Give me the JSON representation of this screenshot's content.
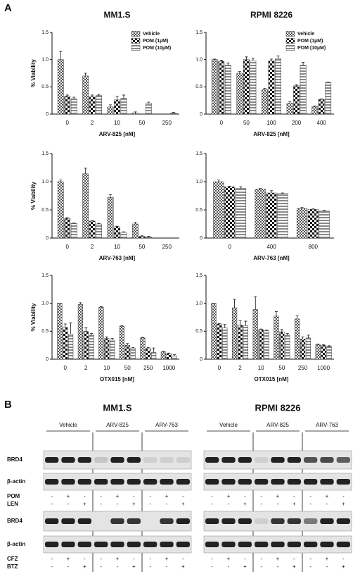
{
  "panel_a_label": "A",
  "panel_b_label": "B",
  "chart_data": [
    {
      "type": "bar",
      "title": "MM1.S",
      "x_label": "ARV-825 [nM]",
      "y_label": "% Viability",
      "legend": "upper right",
      "categories": [
        "0",
        "2",
        "10",
        "50",
        "250"
      ],
      "ylim": [
        0,
        1.5
      ],
      "yticks": [
        0,
        0.5,
        {
          "value": 1,
          "label": "1.0"
        },
        1.5
      ],
      "series": [
        {
          "name": "Vehicle",
          "color": "#555555",
          "pattern": "checker",
          "values": [
            1.0,
            0.7,
            0.13,
            0.02,
            0.0
          ],
          "errors": [
            0.15,
            0.05,
            0.04,
            0.02,
            0
          ]
        },
        {
          "name": "POM (1µM)",
          "color": "#111111",
          "pattern": "check-large",
          "values": [
            0.33,
            0.32,
            0.26,
            0.0,
            0.0
          ],
          "errors": [
            0.02,
            0.03,
            0.07,
            0,
            0
          ]
        },
        {
          "name": "POM (10µM)",
          "color": "#888888",
          "pattern": "stripes",
          "values": [
            0.28,
            0.34,
            0.29,
            0.2,
            0.02
          ],
          "errors": [
            0.03,
            0.02,
            0.06,
            0.02,
            0.01
          ]
        }
      ]
    },
    {
      "type": "bar",
      "title": "RPMI 8226",
      "x_label": "ARV-825 [nM]",
      "legend": "upper right",
      "categories": [
        "0",
        "50",
        "100",
        "200",
        "400"
      ],
      "ylim": [
        0,
        1.5
      ],
      "yticks": [
        0,
        0.5,
        {
          "value": 1,
          "label": "1.0"
        },
        1.5
      ],
      "series": [
        {
          "name": "Vehicle",
          "color": "#555555",
          "pattern": "checker",
          "values": [
            1.0,
            0.75,
            0.45,
            0.2,
            0.14
          ],
          "errors": [
            0.01,
            0.03,
            0.02,
            0.03,
            0.01
          ]
        },
        {
          "name": "POM (1µM)",
          "color": "#111111",
          "pattern": "check-large",
          "values": [
            0.97,
            1.0,
            0.98,
            0.52,
            0.27
          ],
          "errors": [
            0.02,
            0.05,
            0.03,
            0.02,
            0.01
          ]
        },
        {
          "name": "POM (10µM)",
          "color": "#888888",
          "pattern": "stripes",
          "values": [
            0.9,
            0.98,
            1.02,
            0.9,
            0.58
          ],
          "errors": [
            0.04,
            0.05,
            0.05,
            0.05,
            0.01
          ]
        }
      ]
    },
    {
      "type": "bar",
      "x_label": "ARV-763 [nM]",
      "y_label": "% Viability",
      "categories": [
        "0",
        "2",
        "10",
        "50",
        "250"
      ],
      "ylim": [
        0,
        1.5
      ],
      "yticks": [
        0,
        0.5,
        {
          "value": 1,
          "label": "1.0"
        },
        1.5
      ],
      "series": [
        {
          "color": "#555555",
          "pattern": "checker",
          "values": [
            1.0,
            1.14,
            0.72,
            0.25,
            0
          ],
          "errors": [
            0.03,
            0.1,
            0.05,
            0.03,
            0
          ]
        },
        {
          "color": "#111111",
          "pattern": "check-large",
          "values": [
            0.35,
            0.3,
            0.2,
            0.03,
            0
          ],
          "errors": [
            0.01,
            0.01,
            0.01,
            0.01,
            0
          ]
        },
        {
          "color": "#888888",
          "pattern": "stripes",
          "values": [
            0.26,
            0.25,
            0.1,
            0.02,
            0
          ],
          "errors": [
            0.01,
            0.01,
            0.01,
            0.01,
            0
          ]
        }
      ]
    },
    {
      "type": "bar",
      "x_label": "ARV-763 [nM]",
      "categories": [
        "0",
        "400",
        "800"
      ],
      "ylim": [
        0,
        1.5
      ],
      "yticks": [
        0,
        0.5,
        {
          "value": 1,
          "label": "1.0"
        },
        1.5
      ],
      "series": [
        {
          "color": "#555555",
          "pattern": "checker",
          "values": [
            1.0,
            0.87,
            0.53
          ],
          "errors": [
            0.03,
            0.01,
            0.01
          ]
        },
        {
          "color": "#111111",
          "pattern": "check-large",
          "values": [
            0.91,
            0.8,
            0.51
          ],
          "errors": [
            0.01,
            0.04,
            0.01
          ]
        },
        {
          "color": "#888888",
          "pattern": "stripes",
          "values": [
            0.88,
            0.79,
            0.48
          ],
          "errors": [
            0.03,
            0.01,
            0.01
          ]
        }
      ]
    },
    {
      "type": "bar",
      "x_label": "OTX015 [nM]",
      "y_label": "% Viability",
      "categories": [
        "0",
        "2",
        "10",
        "50",
        "250",
        "1000"
      ],
      "ylim": [
        0,
        1.5
      ],
      "yticks": [
        0,
        0.5,
        {
          "value": 1,
          "label": "1.0"
        },
        1.5
      ],
      "series": [
        {
          "color": "#555555",
          "pattern": "checker",
          "values": [
            1.0,
            0.98,
            0.93,
            0.59,
            0.38,
            0.13
          ],
          "errors": [
            0,
            0.03,
            0.01,
            0.01,
            0.01,
            0.01
          ]
        },
        {
          "color": "#111111",
          "pattern": "check-large",
          "values": [
            0.57,
            0.5,
            0.37,
            0.25,
            0.19,
            0.1
          ],
          "errors": [
            0.06,
            0.06,
            0.03,
            0.03,
            0.02,
            0.01
          ]
        },
        {
          "color": "#888888",
          "pattern": "stripes",
          "values": [
            0.45,
            0.43,
            0.34,
            0.2,
            0.12,
            0.06
          ],
          "errors": [
            0.2,
            0.03,
            0.03,
            0.01,
            0.08,
            0.02
          ]
        }
      ]
    },
    {
      "type": "bar",
      "x_label": "OTX015 [nM]",
      "categories": [
        "0",
        "2",
        "10",
        "50",
        "250",
        "1000"
      ],
      "ylim": [
        0,
        1.5
      ],
      "yticks": [
        0,
        0.5,
        {
          "value": 1,
          "label": "1.0"
        },
        1.5
      ],
      "series": [
        {
          "color": "#555555",
          "pattern": "checker",
          "values": [
            1.0,
            0.92,
            0.89,
            0.77,
            0.72,
            0.26
          ],
          "errors": [
            0,
            0.15,
            0.23,
            0.08,
            0.06,
            0.01
          ]
        },
        {
          "color": "#111111",
          "pattern": "check-large",
          "values": [
            0.63,
            0.61,
            0.53,
            0.49,
            0.36,
            0.25
          ],
          "errors": [
            0.01,
            0.08,
            0.01,
            0.04,
            0.04,
            0.01
          ]
        },
        {
          "color": "#888888",
          "pattern": "stripes",
          "values": [
            0.56,
            0.6,
            0.51,
            0.43,
            0.38,
            0.23
          ],
          "errors": [
            0.06,
            0.08,
            0.01,
            0.03,
            0.05,
            0.01
          ]
        }
      ]
    }
  ],
  "blots": {
    "cell_lines": [
      "MM1.S",
      "RPMI 8226"
    ],
    "groups": [
      "Vehicle",
      "ARV-825",
      "ARV-763"
    ],
    "rows": [
      "BRD4",
      "β-actin"
    ],
    "treatments_top": [
      {
        "label": "POM",
        "signs": [
          "-",
          "+",
          "-",
          "-",
          "+",
          "-",
          "-",
          "+",
          "-"
        ]
      },
      {
        "label": "LEN",
        "signs": [
          "-",
          "-",
          "+",
          "-",
          "-",
          "+",
          "-",
          "-",
          "+"
        ]
      }
    ],
    "treatments_bottom": [
      {
        "label": "CFZ",
        "signs": [
          "-",
          "+",
          "-",
          "-",
          "+",
          "-",
          "-",
          "+",
          "-"
        ]
      },
      {
        "label": "BTZ",
        "signs": [
          "-",
          "-",
          "+",
          "-",
          "-",
          "+",
          "-",
          "-",
          "+"
        ]
      }
    ]
  }
}
